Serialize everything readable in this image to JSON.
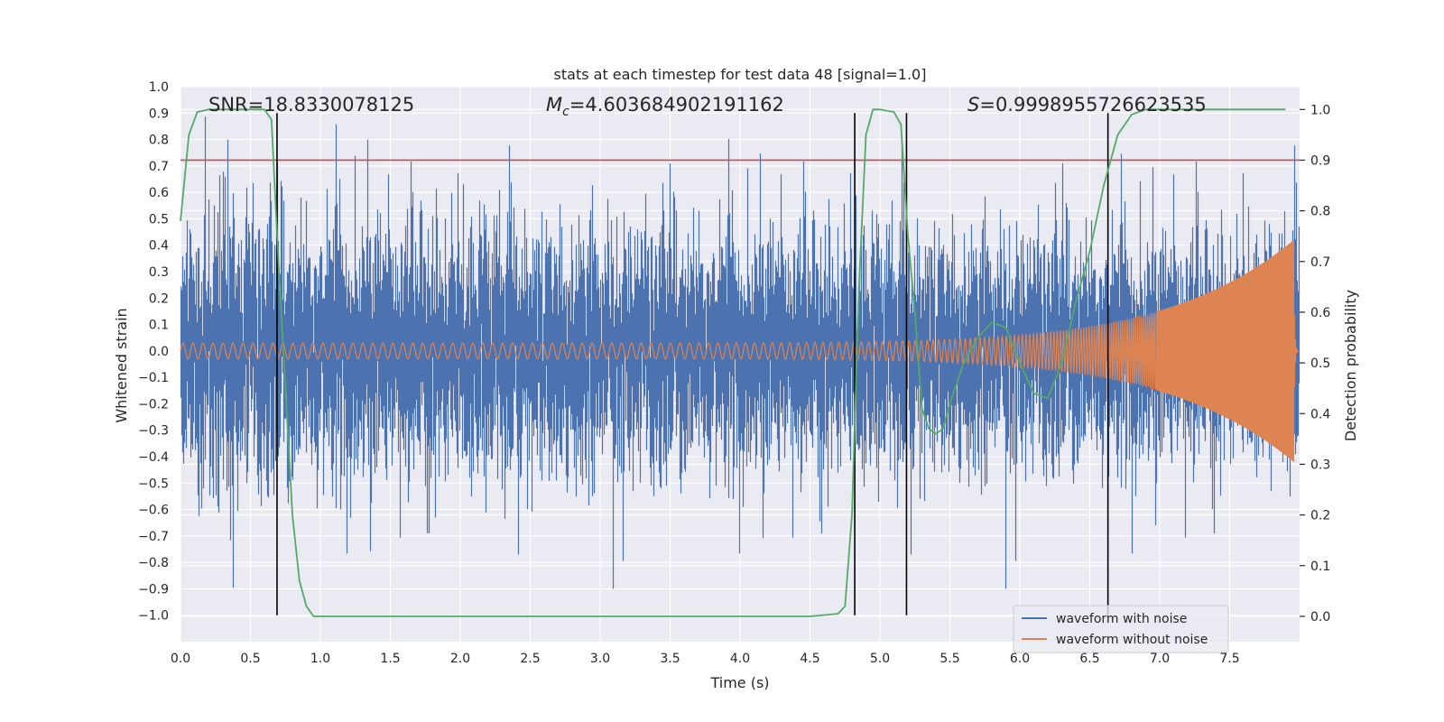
{
  "chart_data": {
    "type": "line",
    "title": "stats at each timestep for test data 48 [signal=1.0]",
    "xlabel": "Time (s)",
    "ylabel": "Whitened strain",
    "y2label": "Detection probability",
    "xlim": [
      0.0,
      8.0
    ],
    "ylim": [
      -1.1,
      1.0
    ],
    "y2lim": [
      -0.05,
      1.045
    ],
    "xticks": [
      0.0,
      0.5,
      1.0,
      1.5,
      2.0,
      2.5,
      3.0,
      3.5,
      4.0,
      4.5,
      5.0,
      5.5,
      6.0,
      6.5,
      7.0,
      7.5
    ],
    "xtick_labels": [
      "0.0",
      "0.5",
      "1.0",
      "1.5",
      "2.0",
      "2.5",
      "3.0",
      "3.5",
      "4.0",
      "4.5",
      "5.0",
      "5.5",
      "6.0",
      "6.5",
      "7.0",
      "7.5"
    ],
    "yticks": [
      1.0,
      0.9,
      0.8,
      0.7,
      0.6,
      0.5,
      0.4,
      0.3,
      0.2,
      0.1,
      0.0,
      -0.1,
      -0.2,
      -0.3,
      -0.4,
      -0.5,
      -0.6,
      -0.7,
      -0.8,
      -0.9,
      -1.0
    ],
    "ytick_labels": [
      "1.0",
      "0.9",
      "0.8",
      "0.7",
      "0.6",
      "0.5",
      "0.4",
      "0.3",
      "0.2",
      "0.1",
      "0.0",
      "−0.1",
      "−0.2",
      "−0.3",
      "−0.4",
      "−0.5",
      "−0.6",
      "−0.7",
      "−0.8",
      "−0.9",
      "−1.0"
    ],
    "y2ticks": [
      1.0,
      0.9,
      0.8,
      0.7,
      0.6,
      0.5,
      0.4,
      0.3,
      0.2,
      0.1,
      0.0
    ],
    "y2tick_labels": [
      "1.0",
      "0.9",
      "0.8",
      "0.7",
      "0.6",
      "0.5",
      "0.4",
      "0.3",
      "0.2",
      "0.1",
      "0.0"
    ],
    "annotations": {
      "snr": "SNR=18.8330078125",
      "mc_symbol": "M",
      "mc_sub": "c",
      "mc_value": "=4.603684902191162",
      "s_symbol": "S",
      "s_value": "=0.9998955726623535"
    },
    "series": [
      {
        "name": "waveform with noise",
        "color": "#4c72b0",
        "kind": "noisy strain, amplitude ~0.35 rms envelope growing to ~0.05 at merger, peaks up to ~0.9",
        "duration": 8.0
      },
      {
        "name": "waveform without noise",
        "color": "#dd8452",
        "kind": "chirp signal, amplitude ~0.03 at t=0 growing to ~0.42 near t=7.95, then ringdown",
        "duration": 8.0
      },
      {
        "name": "detection probability",
        "color": "#55a868",
        "axis": "right",
        "x": [
          0.0,
          0.06,
          0.12,
          0.2,
          0.3,
          0.4,
          0.5,
          0.6,
          0.65,
          0.7,
          0.75,
          0.8,
          0.85,
          0.9,
          0.95,
          1.0,
          1.5,
          2.0,
          2.5,
          3.0,
          3.5,
          4.0,
          4.5,
          4.7,
          4.75,
          4.8,
          4.85,
          4.9,
          4.95,
          5.0,
          5.1,
          5.15,
          5.2,
          5.25,
          5.3,
          5.35,
          5.4,
          5.45,
          5.5,
          5.6,
          5.7,
          5.8,
          5.9,
          6.0,
          6.1,
          6.2,
          6.3,
          6.4,
          6.5,
          6.6,
          6.7,
          6.8,
          6.9,
          7.0,
          7.5,
          7.9
        ],
        "y": [
          0.78,
          0.95,
          0.995,
          1.0,
          1.0,
          1.0,
          1.0,
          1.0,
          0.98,
          0.7,
          0.45,
          0.2,
          0.07,
          0.02,
          0.0,
          0.0,
          0.0,
          0.0,
          0.0,
          0.0,
          0.0,
          0.0,
          0.0,
          0.005,
          0.02,
          0.2,
          0.65,
          0.95,
          1.0,
          1.0,
          0.995,
          0.97,
          0.75,
          0.6,
          0.41,
          0.37,
          0.36,
          0.37,
          0.42,
          0.5,
          0.55,
          0.58,
          0.57,
          0.5,
          0.44,
          0.43,
          0.5,
          0.62,
          0.72,
          0.85,
          0.95,
          0.99,
          1.0,
          1.0,
          1.0,
          1.0
        ]
      },
      {
        "name": "threshold",
        "color": "#c44e52",
        "axis": "right",
        "y": 0.9
      }
    ],
    "vlines": [
      0.69,
      4.82,
      5.19,
      6.63
    ],
    "legend": {
      "location": "lower-right",
      "entries": [
        "waveform with noise",
        "waveform without noise"
      ]
    },
    "grid": true
  }
}
